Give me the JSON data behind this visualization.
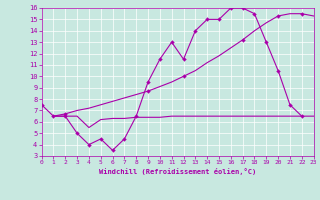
{
  "background_color": "#c8e8e0",
  "grid_color": "#ffffff",
  "line_color": "#aa00aa",
  "xlabel": "Windchill (Refroidissement éolien,°C)",
  "xlim": [
    0,
    23
  ],
  "ylim": [
    3,
    16
  ],
  "xticks": [
    0,
    1,
    2,
    3,
    4,
    5,
    6,
    7,
    8,
    9,
    10,
    11,
    12,
    13,
    14,
    15,
    16,
    17,
    18,
    19,
    20,
    21,
    22,
    23
  ],
  "yticks": [
    3,
    4,
    5,
    6,
    7,
    8,
    9,
    10,
    11,
    12,
    13,
    14,
    15,
    16
  ],
  "line1_x": [
    0,
    1,
    2,
    3,
    4,
    5,
    6,
    7,
    8,
    9,
    10,
    11,
    12,
    13,
    14,
    15,
    16,
    17,
    18,
    19,
    20,
    21,
    22
  ],
  "line1_y": [
    7.5,
    6.5,
    6.5,
    5.0,
    4.0,
    4.5,
    3.5,
    4.5,
    6.5,
    9.5,
    11.5,
    13.0,
    11.5,
    14.0,
    15.0,
    15.0,
    16.0,
    16.0,
    15.5,
    13.0,
    10.5,
    7.5,
    6.5
  ],
  "line2_x": [
    1,
    2,
    3,
    4,
    5,
    6,
    7,
    8,
    9,
    10,
    11,
    12,
    13,
    14,
    15,
    16,
    17,
    18,
    19,
    20,
    21,
    22,
    23
  ],
  "line2_y": [
    6.5,
    6.7,
    7.0,
    7.2,
    7.5,
    7.8,
    8.1,
    8.4,
    8.7,
    9.1,
    9.5,
    10.0,
    10.5,
    11.2,
    11.8,
    12.5,
    13.2,
    14.0,
    14.7,
    15.3,
    15.5,
    15.5,
    15.3
  ],
  "line3_x": [
    1,
    2,
    3,
    4,
    5,
    6,
    7,
    8,
    9,
    10,
    11,
    12,
    13,
    14,
    15,
    16,
    17,
    18,
    19,
    20,
    21,
    22,
    23
  ],
  "line3_y": [
    6.5,
    6.5,
    6.5,
    5.5,
    6.2,
    6.3,
    6.3,
    6.4,
    6.4,
    6.4,
    6.5,
    6.5,
    6.5,
    6.5,
    6.5,
    6.5,
    6.5,
    6.5,
    6.5,
    6.5,
    6.5,
    6.5,
    6.5
  ],
  "line2_markers_x": [
    2,
    9,
    12,
    17,
    20,
    22
  ],
  "line2_markers_y": [
    6.7,
    8.7,
    10.0,
    13.2,
    15.3,
    15.5
  ]
}
